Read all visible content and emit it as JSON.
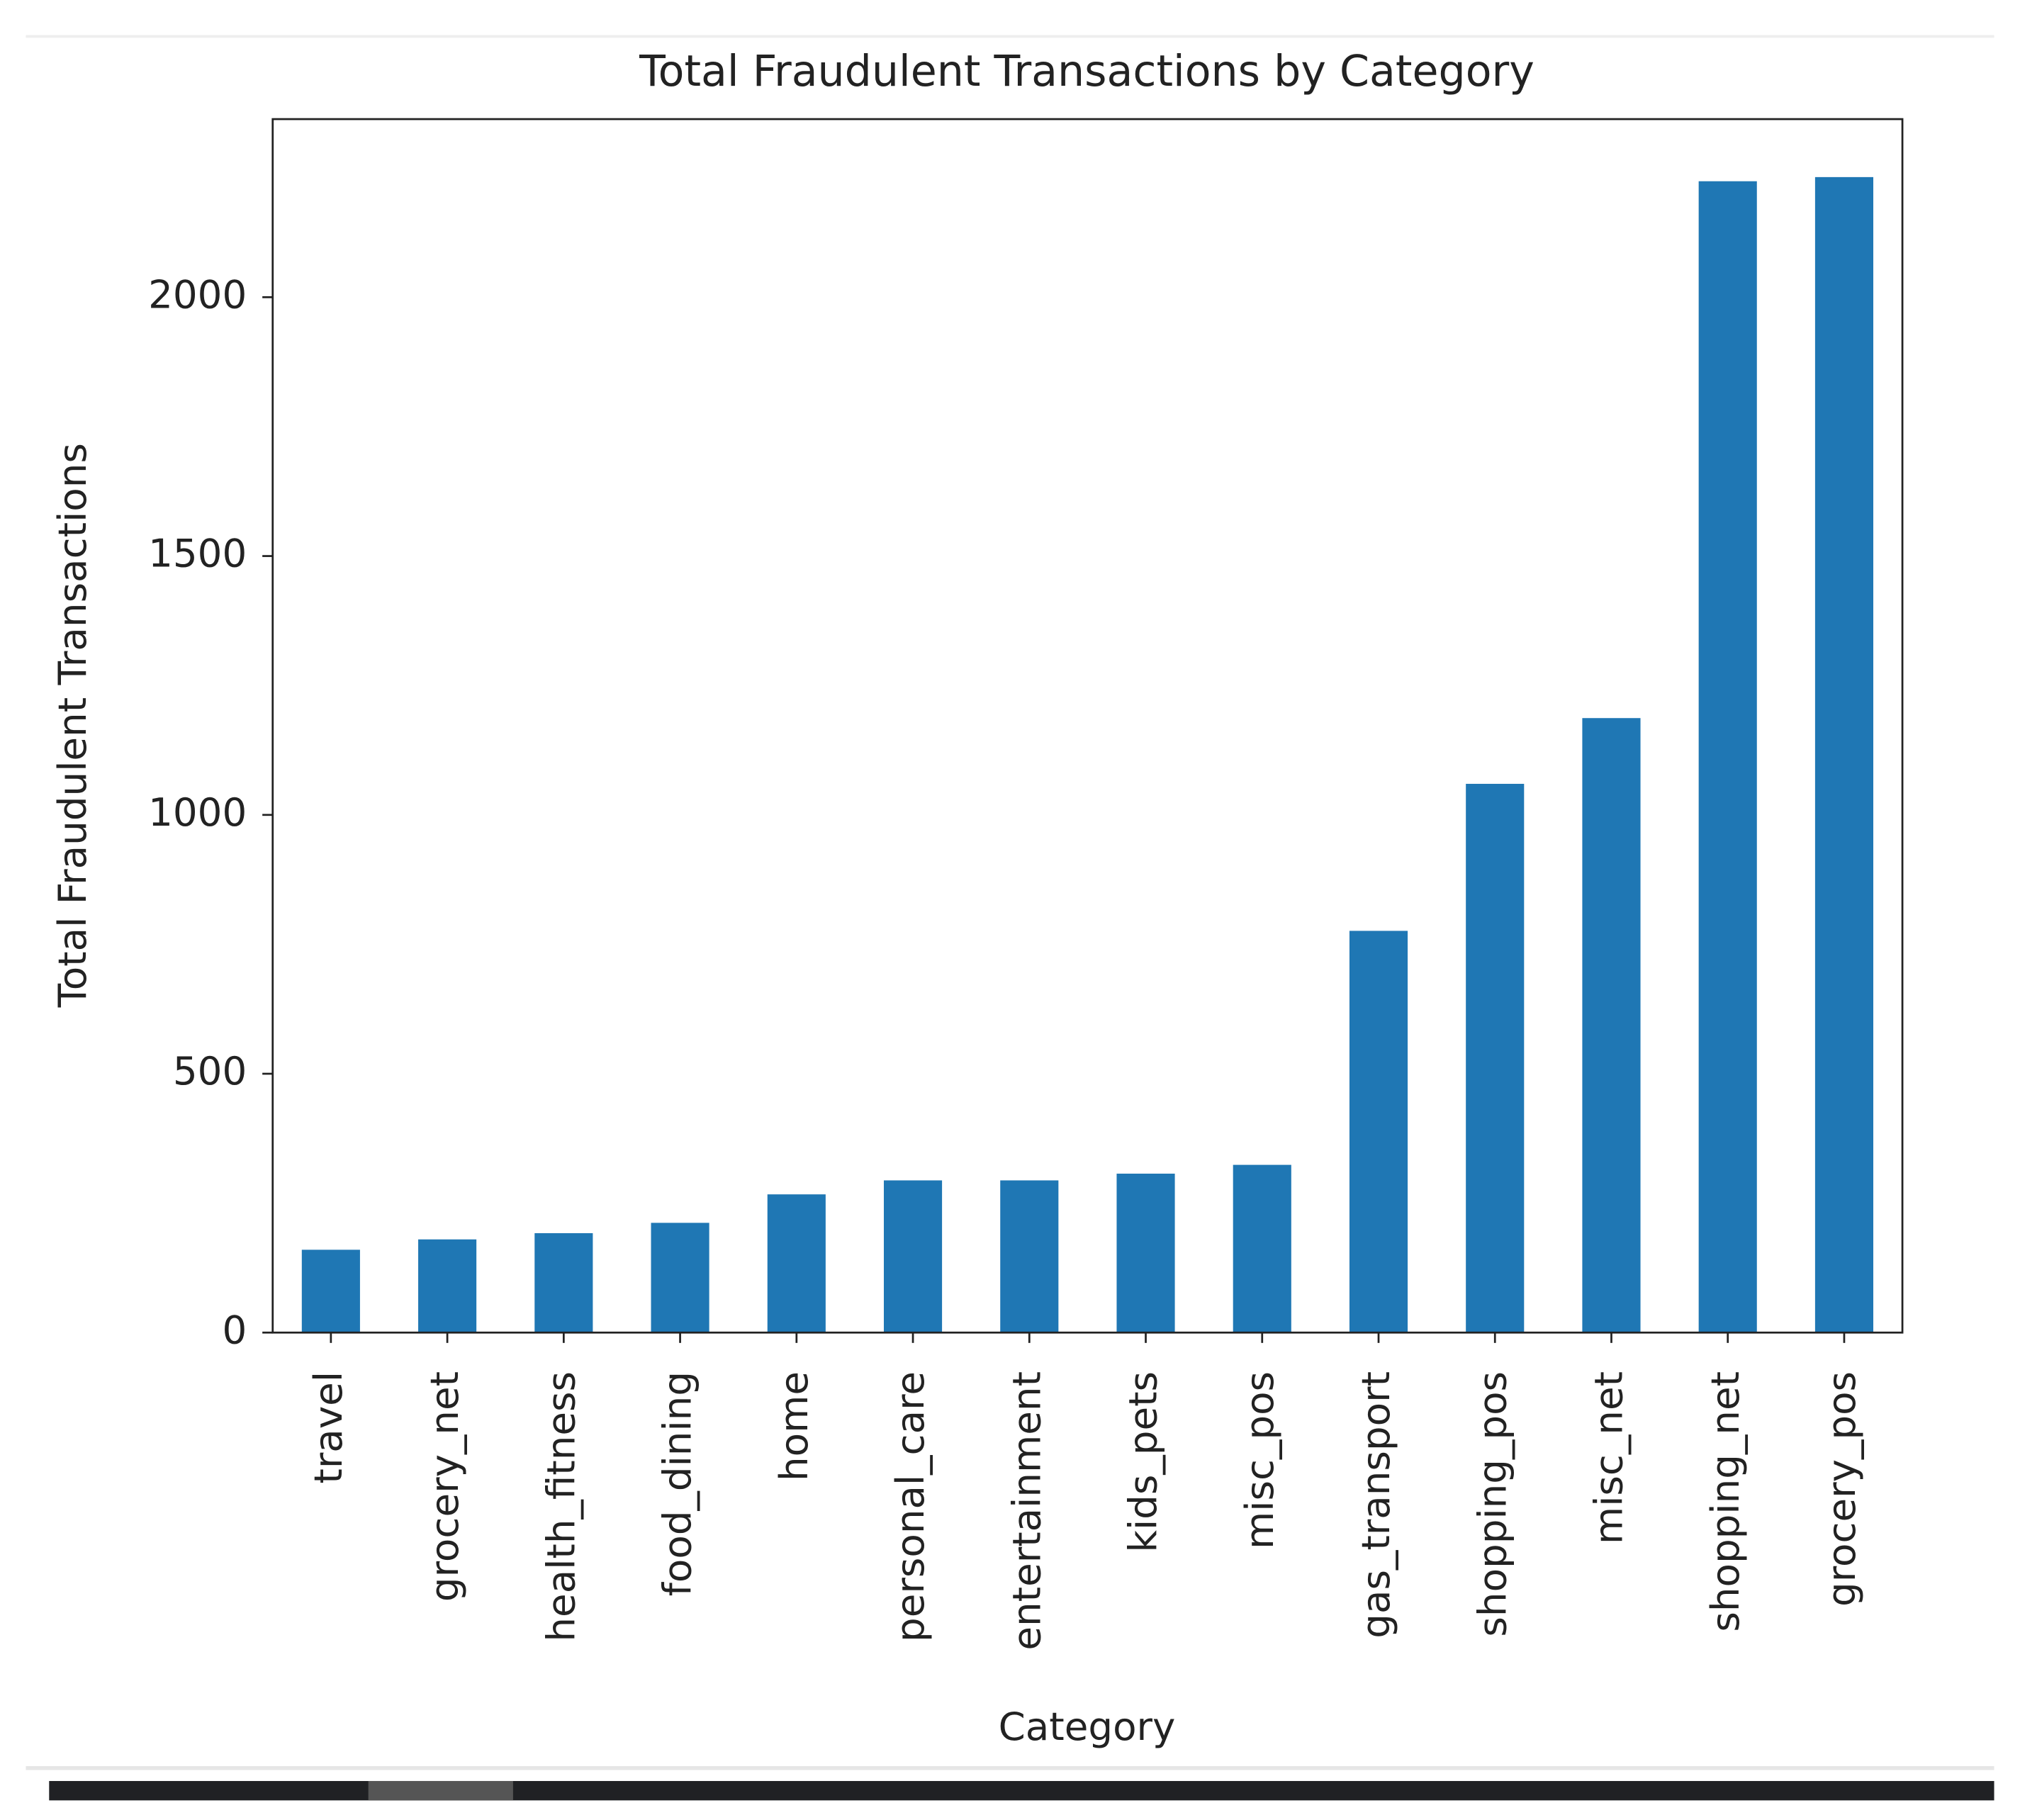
{
  "chart_data": {
    "type": "bar",
    "title": "Total Fraudulent Transactions by Category",
    "x_label": "Category",
    "y_label": "Total Fraudulent Transactions",
    "categories": [
      "travel",
      "grocery_net",
      "health_fitness",
      "food_dining",
      "home",
      "personal_care",
      "entertainment",
      "kids_pets",
      "misc_pos",
      "gas_transport",
      "shopping_pos",
      "misc_net",
      "shopping_net",
      "grocery_pos"
    ],
    "values": [
      160,
      180,
      192,
      212,
      267,
      294,
      294,
      307,
      324,
      776,
      1060,
      1187,
      2224,
      2232
    ],
    "color": "#1f77b4",
    "ylim": [
      0,
      2344
    ],
    "yticks": [
      0,
      500,
      1000,
      1500,
      2000
    ],
    "grid": false
  }
}
